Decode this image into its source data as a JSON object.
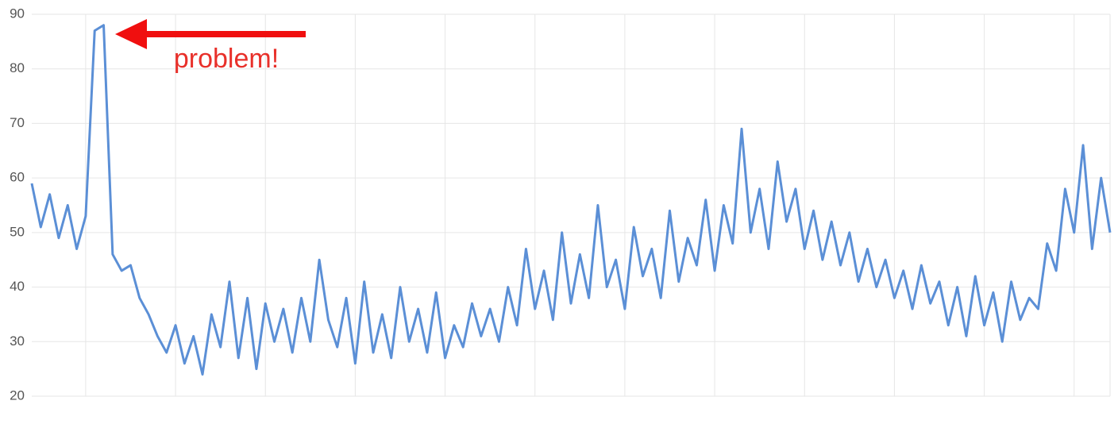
{
  "chart_data": {
    "type": "line",
    "annotation": "problem!",
    "x": [
      -12,
      -10,
      -8,
      -6,
      -4,
      -2,
      0,
      2,
      4,
      6,
      8,
      10,
      12,
      14,
      16,
      18,
      20,
      22,
      24,
      26,
      28,
      30,
      32,
      34,
      36,
      38,
      40,
      42,
      44,
      46,
      48,
      50,
      52,
      54,
      56,
      58,
      60,
      62,
      64,
      66,
      68,
      70,
      72,
      74,
      76,
      78,
      80,
      82,
      84,
      86,
      88,
      90,
      92,
      94,
      96,
      98,
      100,
      102,
      104,
      106,
      108,
      110,
      112,
      114,
      116,
      118,
      120,
      122,
      124,
      126,
      128,
      130,
      132,
      134,
      136,
      138,
      140,
      142,
      144,
      146,
      148,
      150,
      152,
      154,
      156,
      158,
      160,
      162,
      164,
      166,
      168,
      170,
      172,
      174,
      176,
      178,
      180,
      182,
      184,
      186,
      188,
      190,
      192,
      194,
      196,
      198,
      200,
      202,
      204,
      206,
      208,
      210,
      212,
      214,
      216,
      218,
      220,
      222,
      224,
      226,
      228
    ],
    "series": [
      {
        "color": "#5b8fd6",
        "values": [
          59,
          51,
          57,
          49,
          55,
          47,
          53,
          87,
          88,
          46,
          43,
          44,
          38,
          35,
          31,
          28,
          33,
          26,
          31,
          24,
          35,
          29,
          41,
          27,
          38,
          25,
          37,
          30,
          36,
          28,
          38,
          30,
          45,
          34,
          29,
          38,
          26,
          41,
          28,
          35,
          27,
          40,
          30,
          36,
          28,
          39,
          27,
          33,
          29,
          37,
          31,
          36,
          30,
          40,
          33,
          47,
          36,
          43,
          34,
          50,
          37,
          46,
          38,
          55,
          40,
          45,
          36,
          51,
          42,
          47,
          38,
          54,
          41,
          49,
          44,
          56,
          43,
          55,
          48,
          69,
          50,
          58,
          47,
          63,
          52,
          58,
          47,
          54,
          45,
          52,
          44,
          50,
          41,
          47,
          40,
          45,
          38,
          43,
          36,
          44,
          37,
          41,
          33,
          40,
          31,
          42,
          33,
          39,
          30,
          41,
          34,
          38,
          36,
          48,
          43,
          58,
          50,
          66,
          47,
          60,
          50
        ]
      }
    ],
    "xlim": [
      -12,
      228
    ],
    "xticks": [
      0,
      20,
      40,
      60,
      80,
      100,
      120,
      140,
      160,
      180,
      200,
      220
    ],
    "ylim": [
      20,
      90
    ],
    "yticks": [
      20,
      30,
      40,
      50,
      60,
      70,
      80,
      90
    ],
    "grid": true
  }
}
